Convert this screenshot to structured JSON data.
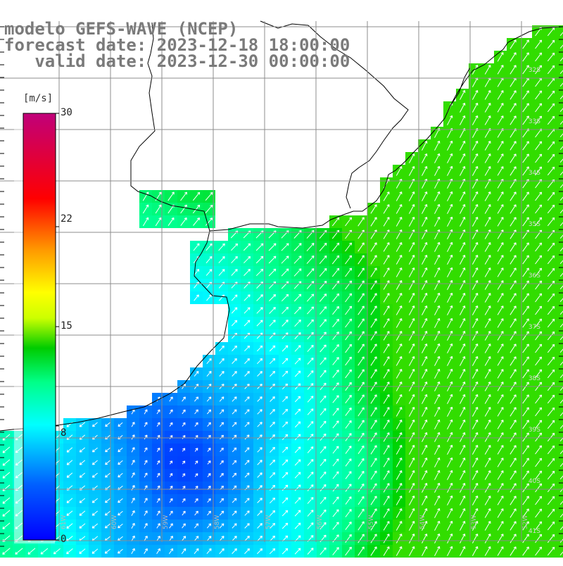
{
  "header": {
    "model": "modelo GEFS-WAVE (NCEP)",
    "forecast": "forecast date: 2023-12-18 18:00:00",
    "valid": "   valid date: 2023-12-30 00:00:00"
  },
  "colorbar": {
    "unit": "[m/s]",
    "min": 0,
    "max": 30,
    "ticks": [
      "30",
      "22",
      "15",
      "8",
      "0"
    ],
    "tick_values": [
      30,
      22,
      15,
      8,
      0
    ],
    "stops": [
      "#0000ff",
      "#00a6ff",
      "#00ffff",
      "#00ff66",
      "#00d000",
      "#ffff00",
      "#ff9900",
      "#ff0000",
      "#c0007a"
    ]
  },
  "map": {
    "land_color": "#ffffff",
    "coast_color": "#000000",
    "grid_color": "#8c8c8c",
    "lat_labels": [
      "32S",
      "33S",
      "34S",
      "35S",
      "36S",
      "37S",
      "38S",
      "39S",
      "40S",
      "41S"
    ],
    "lon_labels": [
      "61W",
      "60W",
      "59W",
      "58W",
      "57W",
      "56W",
      "55W",
      "54W",
      "53W",
      "52W"
    ]
  }
}
